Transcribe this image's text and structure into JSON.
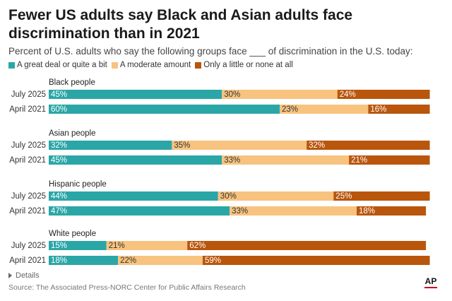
{
  "title": "Fewer US adults say Black and Asian adults face discrimination than in 2021",
  "subtitle": "Percent of U.S. adults who say the following groups face ___ of discrimination in the U.S. today:",
  "legend": [
    {
      "label": "A great deal or quite a bit",
      "color": "#2ba6a7"
    },
    {
      "label": "A moderate amount",
      "color": "#f7c37f"
    },
    {
      "label": "Only a little or none at all",
      "color": "#b9560c"
    }
  ],
  "details_label": "Details",
  "source": "Source: The Associated Press-NORC Center for Public Affairs Research",
  "logo": "AP",
  "chart_data": {
    "type": "bar",
    "orientation": "horizontal",
    "stacked": true,
    "series_names": [
      "A great deal or quite a bit",
      "A moderate amount",
      "Only a little or none at all"
    ],
    "colors": [
      "#2ba6a7",
      "#f7c37f",
      "#b9560c"
    ],
    "label_colors": [
      "#ffffff",
      "#333333",
      "#ffffff"
    ],
    "xlim": [
      0,
      100
    ],
    "groups": [
      {
        "name": "Black people",
        "rows": [
          {
            "label": "July 2025",
            "values": [
              45,
              30,
              24
            ]
          },
          {
            "label": "April 2021",
            "values": [
              60,
              23,
              16
            ]
          }
        ]
      },
      {
        "name": "Asian people",
        "rows": [
          {
            "label": "July 2025",
            "values": [
              32,
              35,
              32
            ]
          },
          {
            "label": "April 2021",
            "values": [
              45,
              33,
              21
            ]
          }
        ]
      },
      {
        "name": "Hispanic people",
        "rows": [
          {
            "label": "July 2025",
            "values": [
              44,
              30,
              25
            ]
          },
          {
            "label": "April 2021",
            "values": [
              47,
              33,
              18
            ]
          }
        ]
      },
      {
        "name": "White people",
        "rows": [
          {
            "label": "July 2025",
            "values": [
              15,
              21,
              62
            ]
          },
          {
            "label": "April 2021",
            "values": [
              18,
              22,
              59
            ]
          }
        ]
      }
    ]
  }
}
